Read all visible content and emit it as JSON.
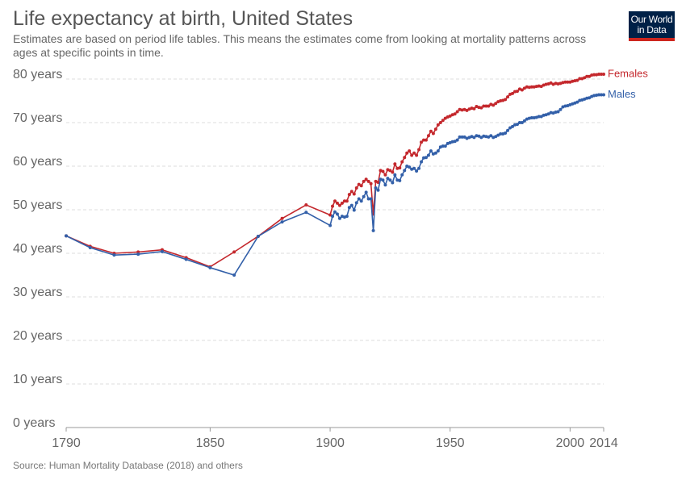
{
  "chart_data": {
    "type": "line",
    "title": "Life expectancy at birth, United States",
    "subtitle": "Estimates are based on period life tables. This means the estimates come from looking at mortality patterns across ages at specific points in time.",
    "source": "Source: Human Mortality Database (2018) and others",
    "logo": {
      "line1": "Our World",
      "line2": "in Data"
    },
    "x": [
      1790,
      1800,
      1810,
      1820,
      1830,
      1840,
      1850,
      1860,
      1870,
      1880,
      1890,
      1900,
      1901,
      1902,
      1903,
      1904,
      1905,
      1906,
      1907,
      1908,
      1909,
      1910,
      1911,
      1912,
      1913,
      1914,
      1915,
      1916,
      1917,
      1918,
      1919,
      1920,
      1921,
      1922,
      1923,
      1924,
      1925,
      1926,
      1927,
      1928,
      1929,
      1930,
      1931,
      1932,
      1933,
      1934,
      1935,
      1936,
      1937,
      1938,
      1939,
      1940,
      1941,
      1942,
      1943,
      1944,
      1945,
      1946,
      1947,
      1948,
      1949,
      1950,
      1951,
      1952,
      1953,
      1954,
      1955,
      1956,
      1957,
      1958,
      1959,
      1960,
      1961,
      1962,
      1963,
      1964,
      1965,
      1966,
      1967,
      1968,
      1969,
      1970,
      1971,
      1972,
      1973,
      1974,
      1975,
      1976,
      1977,
      1978,
      1979,
      1980,
      1981,
      1982,
      1983,
      1984,
      1985,
      1986,
      1987,
      1988,
      1989,
      1990,
      1991,
      1992,
      1993,
      1994,
      1995,
      1996,
      1997,
      1998,
      1999,
      2000,
      2001,
      2002,
      2003,
      2004,
      2005,
      2006,
      2007,
      2008,
      2009,
      2010,
      2011,
      2012,
      2013,
      2014
    ],
    "series": [
      {
        "name": "Females",
        "color": "#c4282d",
        "values": [
          44.0,
          41.6,
          40.0,
          40.3,
          40.8,
          39.0,
          36.9,
          40.3,
          43.9,
          48.0,
          51.1,
          48.8,
          50.8,
          52.0,
          51.5,
          51.0,
          51.5,
          52.0,
          52.0,
          53.5,
          54.2,
          53.6,
          55.0,
          55.8,
          55.5,
          56.5,
          57.0,
          56.5,
          56.0,
          49.0,
          56.5,
          56.3,
          59.0,
          58.8,
          58.0,
          59.2,
          59.0,
          58.6,
          60.5,
          59.5,
          59.6,
          61.0,
          62.0,
          63.0,
          63.5,
          62.5,
          63.0,
          62.5,
          63.8,
          65.5,
          66.0,
          66.0,
          67.0,
          68.0,
          67.5,
          68.5,
          69.5,
          70.0,
          70.5,
          71.0,
          71.3,
          71.5,
          71.8,
          72.0,
          72.5,
          73.0,
          72.9,
          73.0,
          72.8,
          73.1,
          73.3,
          73.2,
          73.7,
          73.5,
          73.4,
          73.8,
          73.8,
          73.8,
          74.2,
          74.0,
          74.4,
          74.8,
          75.0,
          75.1,
          75.3,
          75.9,
          76.5,
          76.7,
          77.1,
          77.2,
          77.7,
          77.5,
          77.9,
          78.2,
          78.1,
          78.2,
          78.2,
          78.3,
          78.4,
          78.3,
          78.6,
          78.8,
          78.9,
          79.1,
          78.8,
          79.0,
          78.9,
          79.0,
          79.2,
          79.3,
          79.3,
          79.3,
          79.5,
          79.6,
          79.7,
          80.1,
          80.1,
          80.3,
          80.6,
          80.6,
          80.9,
          81.0,
          81.0,
          81.1,
          81.1,
          81.1
        ]
      },
      {
        "name": "Males",
        "color": "#3360a9",
        "values": [
          44.0,
          41.3,
          39.6,
          39.8,
          40.4,
          38.6,
          36.7,
          35.0,
          43.9,
          47.2,
          49.4,
          46.4,
          48.5,
          49.5,
          49.0,
          48.0,
          48.5,
          48.3,
          48.5,
          50.5,
          51.0,
          49.9,
          51.6,
          52.5,
          52.0,
          53.0,
          54.0,
          52.5,
          52.5,
          45.2,
          55.0,
          54.5,
          57.0,
          56.8,
          55.7,
          57.2,
          56.8,
          56.2,
          58.0,
          56.8,
          56.7,
          58.0,
          59.0,
          60.0,
          59.8,
          59.3,
          59.5,
          58.9,
          59.5,
          61.0,
          61.9,
          62.0,
          62.5,
          63.5,
          62.8,
          63.0,
          63.5,
          64.4,
          64.6,
          64.6,
          65.2,
          65.4,
          65.6,
          65.7,
          66.0,
          66.7,
          66.7,
          66.7,
          66.4,
          66.6,
          66.8,
          66.6,
          67.0,
          66.9,
          66.6,
          66.9,
          66.8,
          66.7,
          67.0,
          66.6,
          66.8,
          67.1,
          67.4,
          67.4,
          67.6,
          68.2,
          68.8,
          69.1,
          69.5,
          69.6,
          70.0,
          70.0,
          70.4,
          70.8,
          71.0,
          71.1,
          71.1,
          71.2,
          71.4,
          71.4,
          71.7,
          71.8,
          72.0,
          72.3,
          72.2,
          72.4,
          72.5,
          73.0,
          73.6,
          73.8,
          73.9,
          74.1,
          74.3,
          74.5,
          74.7,
          75.1,
          75.2,
          75.4,
          75.6,
          75.7,
          76.0,
          76.2,
          76.3,
          76.4,
          76.4,
          76.4
        ]
      }
    ],
    "xlim": [
      1790,
      2014
    ],
    "xticks": [
      1790,
      1850,
      1900,
      1950,
      2000,
      2014
    ],
    "ylim": [
      0,
      80
    ],
    "yticks": [
      {
        "value": 0,
        "label": "0 years"
      },
      {
        "value": 10,
        "label": "10 years"
      },
      {
        "value": 20,
        "label": "20 years"
      },
      {
        "value": 30,
        "label": "30 years"
      },
      {
        "value": 40,
        "label": "40 years"
      },
      {
        "value": 50,
        "label": "50 years"
      },
      {
        "value": 60,
        "label": "60 years"
      },
      {
        "value": 70,
        "label": "70 years"
      },
      {
        "value": 80,
        "label": "80 years"
      }
    ],
    "grid": true
  }
}
